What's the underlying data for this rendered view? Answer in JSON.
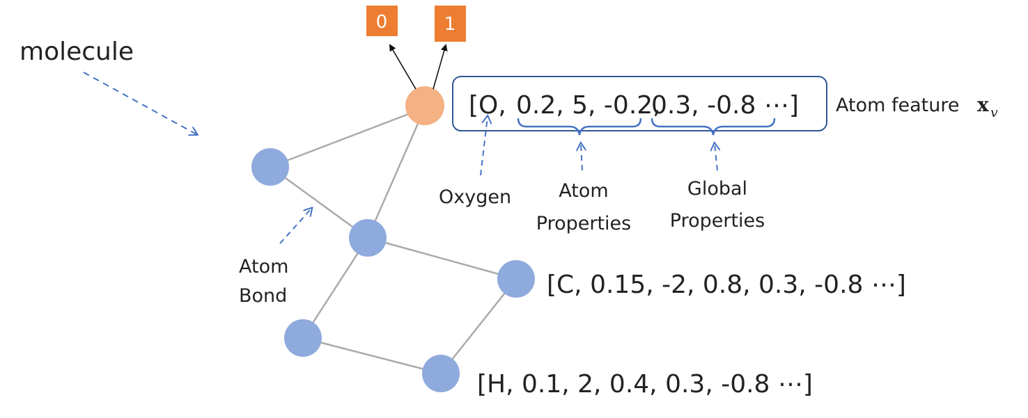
{
  "title_label": "molecule",
  "bond_label_line1": "Atom",
  "bond_label_line2": "Bond",
  "outputs": [
    "0",
    "1"
  ],
  "feature_vectors": {
    "oxygen": {
      "open": "[O,",
      "atom_props": "0.2, 5, -0.2,",
      "global_props": "0.3, -0.8 ⋯]"
    },
    "carbon": "[C, 0.15, -2, 0.8, 0.3, -0.8 ⋯]",
    "hydrogen": "[H, 0.1, 2, 0.4, 0.3, -0.8 ⋯]"
  },
  "atom_feature_label": "Atom feature",
  "atom_feature_symbol": "x",
  "atom_feature_sub": "v",
  "annotations": {
    "oxygen": "Oxygen",
    "atom_properties_line1": "Atom",
    "atom_properties_line2": "Properties",
    "global_properties_line1": "Global",
    "global_properties_line2": "Properties"
  },
  "colors": {
    "atom_blue": "#8faadc",
    "atom_orange": "#f4b183",
    "output_orange": "#ed7d31",
    "bond_gray": "#aaaaaa",
    "brace_blue": "#4472c4",
    "dash_blue": "#4472c4",
    "box_border": "#2f5597"
  }
}
